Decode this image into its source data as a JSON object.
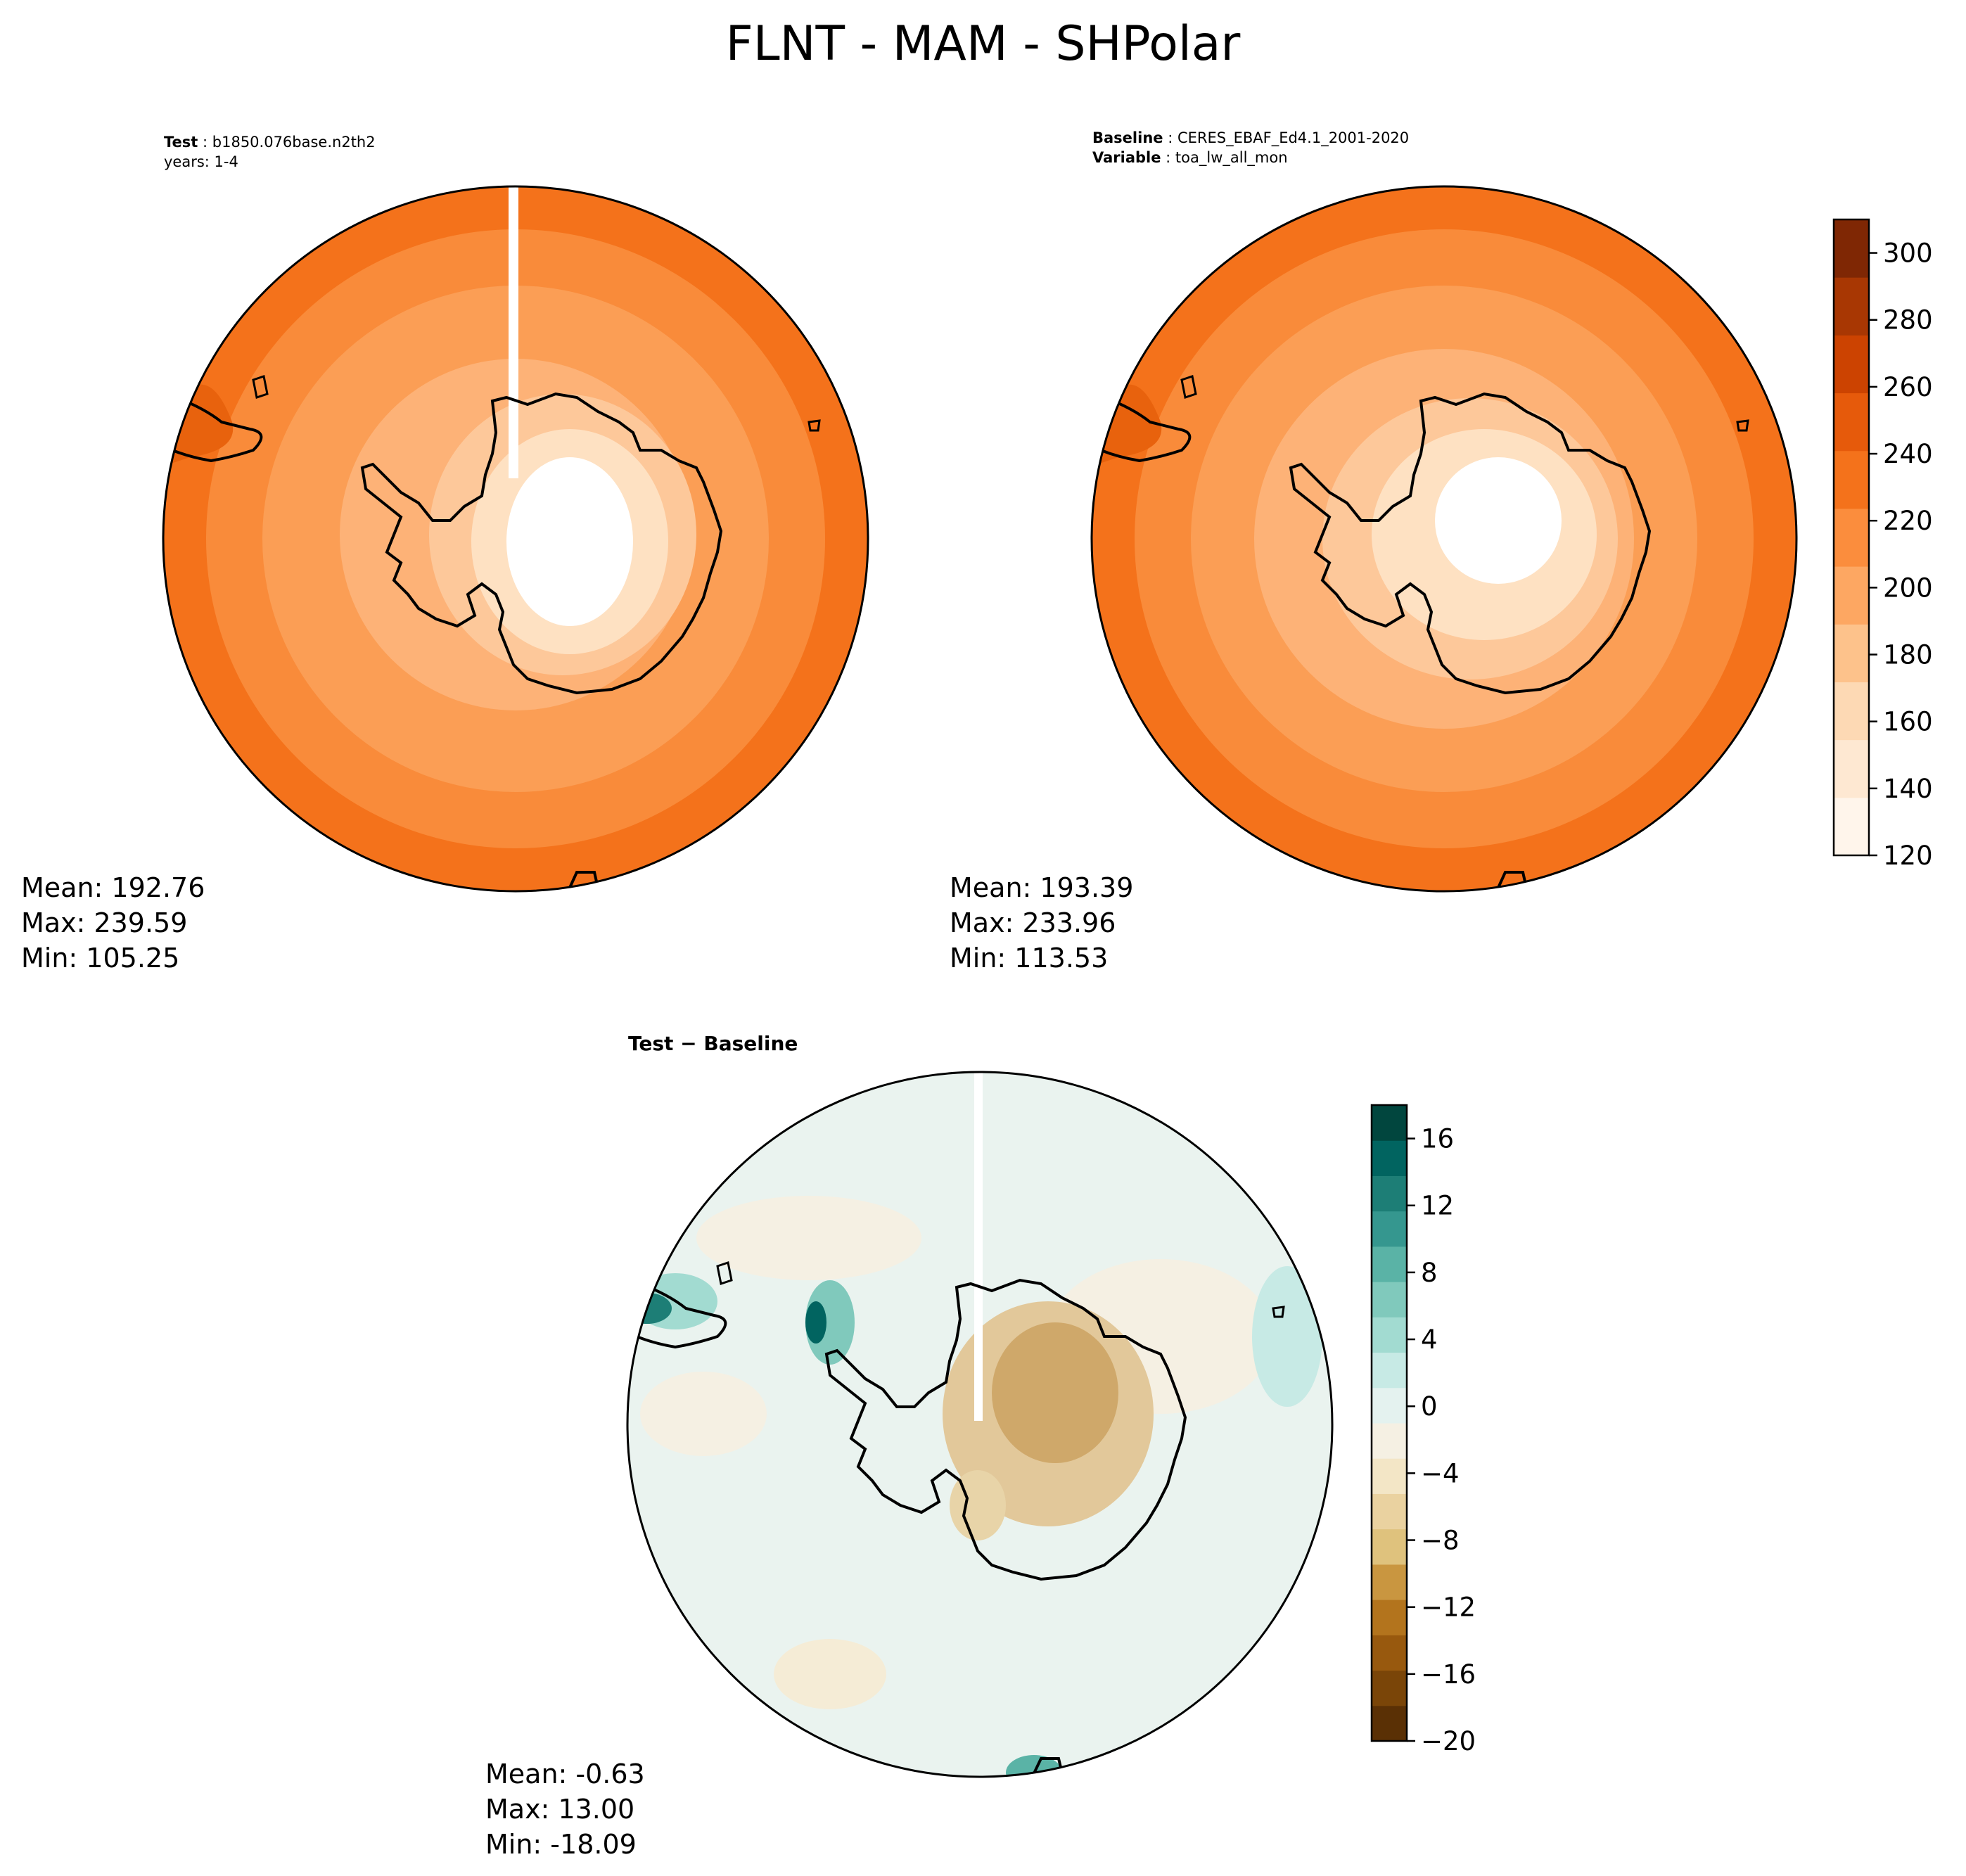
{
  "title": "FLNT - MAM - SHPolar",
  "panels": [
    {
      "id": "test",
      "label_bold": "Test",
      "label_value": "b1850.076base.n2th2",
      "sub_line": "years: 1-4",
      "stats": {
        "mean": "Mean: 192.76",
        "max": "Max: 239.59",
        "min": "Min: 105.25"
      }
    },
    {
      "id": "baseline",
      "label_bold": "Baseline",
      "label_value": "CERES_EBAF_Ed4.1_2001-2020",
      "label2_bold": "Variable",
      "label2_value": "toa_lw_all_mon",
      "stats": {
        "mean": "Mean: 193.39",
        "max": "Max: 233.96",
        "min": "Min: 113.53"
      }
    },
    {
      "id": "diff",
      "title": "Test − Baseline",
      "stats": {
        "mean": "Mean: -0.63",
        "max": "Max: 13.00",
        "min": "Min: -18.09"
      }
    }
  ],
  "chart_data": [
    {
      "type": "heatmap",
      "projection": "south-polar-stereographic",
      "panel": "test",
      "cmap": "Oranges",
      "levels_range": [
        120,
        310
      ],
      "summary": {
        "mean": 192.76,
        "max": 239.59,
        "min": 105.25
      }
    },
    {
      "type": "heatmap",
      "projection": "south-polar-stereographic",
      "panel": "baseline",
      "cmap": "Oranges",
      "levels_range": [
        120,
        310
      ],
      "summary": {
        "mean": 193.39,
        "max": 233.96,
        "min": 113.53
      }
    },
    {
      "type": "heatmap",
      "projection": "south-polar-stereographic",
      "panel": "diff",
      "cmap": "BrBG",
      "levels_range": [
        -20,
        18
      ],
      "summary": {
        "mean": -0.63,
        "max": 13.0,
        "min": -18.09
      }
    }
  ],
  "colorbars": {
    "main": {
      "range": [
        120,
        310
      ],
      "ticks": [
        120,
        140,
        160,
        180,
        200,
        220,
        240,
        260,
        280,
        300
      ],
      "tick_labels": [
        "120",
        "140",
        "160",
        "180",
        "200",
        "220",
        "240",
        "260",
        "280",
        "300"
      ],
      "colors": [
        "#fff5eb",
        "#fee8d2",
        "#fdd9b4",
        "#fdc28b",
        "#fda762",
        "#fb8d3d",
        "#f4721b",
        "#e65a0b",
        "#cc4301",
        "#a83703",
        "#7f2704"
      ]
    },
    "diff": {
      "range": [
        -20,
        18
      ],
      "ticks": [
        -20,
        -16,
        -12,
        -8,
        -4,
        0,
        4,
        8,
        12,
        16
      ],
      "tick_labels": [
        "−20",
        "−16",
        "−12",
        "−8",
        "−4",
        "0",
        "4",
        "8",
        "12",
        "16"
      ],
      "colors": [
        "#5a3005",
        "#7a4508",
        "#98590e",
        "#b3741d",
        "#c99640",
        "#dfc27d",
        "#ead2a0",
        "#f3e6c6",
        "#f5f0e3",
        "#e4f2ef",
        "#c7eae5",
        "#a2dbd1",
        "#80c9bc",
        "#5ab3a6",
        "#35978f",
        "#1d7e76",
        "#016460",
        "#01463e"
      ]
    }
  }
}
